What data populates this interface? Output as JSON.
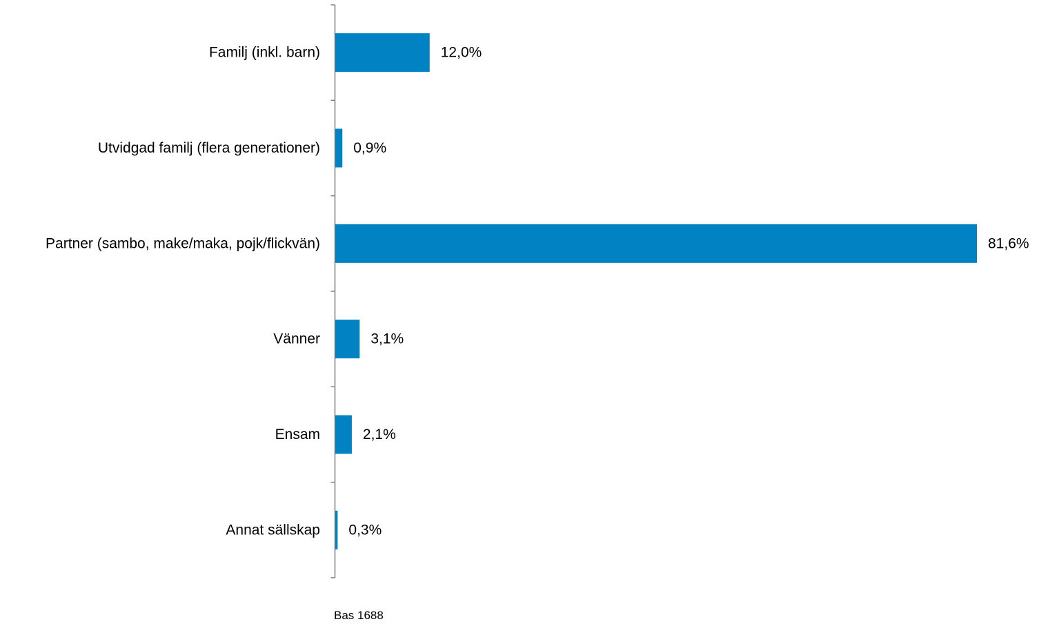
{
  "chart_data": {
    "type": "bar",
    "orientation": "horizontal",
    "categories": [
      "Familj (inkl. barn)",
      "Utvidgad familj (flera generationer)",
      "Partner (sambo, make/maka, pojk/flickvän)",
      "Vänner",
      "Ensam",
      "Annat sällskap"
    ],
    "values": [
      12.0,
      0.9,
      81.6,
      3.1,
      2.1,
      0.3
    ],
    "value_labels": [
      "12,0%",
      "0,9%",
      "81,6%",
      "3,1%",
      "2,1%",
      "0,3%"
    ],
    "unit": "%",
    "xlim": [
      0,
      81.6
    ],
    "grid": false,
    "legend": "none",
    "bar_color": "#0082C3",
    "axis_color": "#7F7F7F"
  },
  "footnote": "Bas 1688"
}
